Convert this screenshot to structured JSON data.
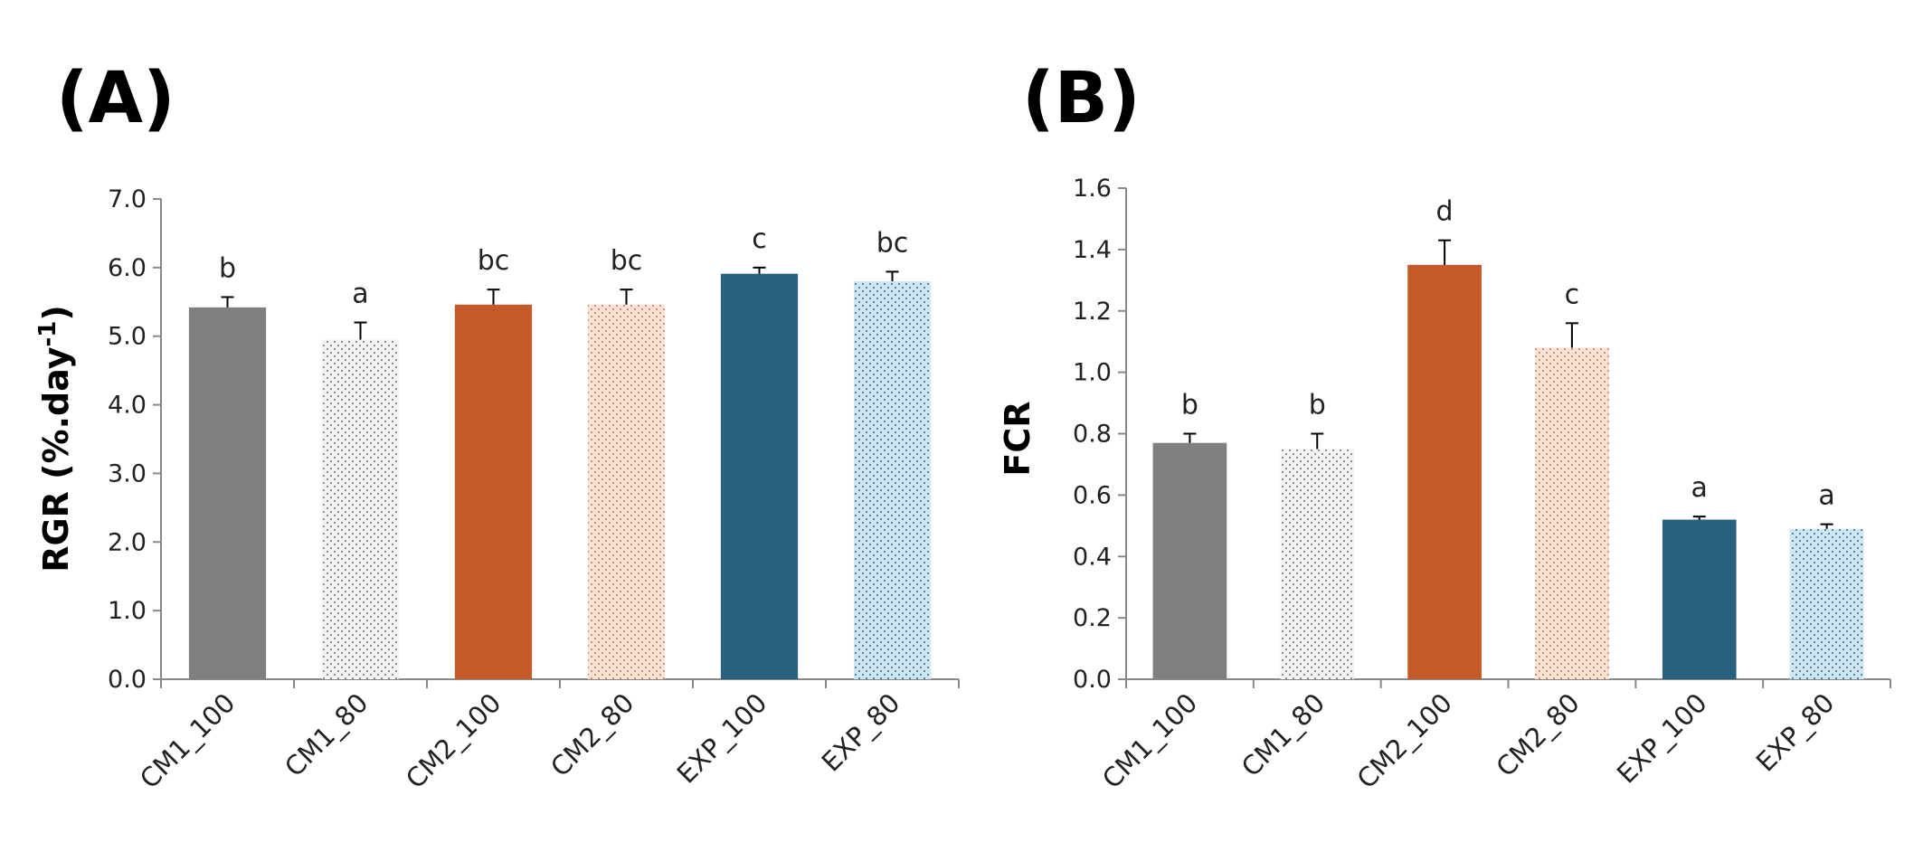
{
  "colors": {
    "CM1_100": "#7f7f7f",
    "CM1_80": "#f2f2f2",
    "CM2_100": "#c55a28",
    "CM2_80": "#fbe3d6",
    "EXP_100": "#28607e",
    "EXP_80": "#cfe6f4",
    "axis": "#888888"
  },
  "chart_data": [
    {
      "type": "bar",
      "panel_label": "(A)",
      "ylabel_main": "RGR (%.day",
      "ylabel_sup": "-1",
      "ylabel_close": ")",
      "ylim": [
        0,
        7
      ],
      "yticks": [
        "0.0",
        "1.0",
        "2.0",
        "3.0",
        "4.0",
        "5.0",
        "6.0",
        "7.0"
      ],
      "grid": false,
      "categories": [
        "CM1_100",
        "CM1_80",
        "CM2_100",
        "CM2_80",
        "EXP_100",
        "EXP_80"
      ],
      "values": [
        5.42,
        4.95,
        5.46,
        5.46,
        5.91,
        5.8
      ],
      "errors": [
        0.15,
        0.25,
        0.22,
        0.22,
        0.09,
        0.14
      ],
      "significance": [
        "b",
        "a",
        "bc",
        "bc",
        "c",
        "bc"
      ]
    },
    {
      "type": "bar",
      "panel_label": "(B)",
      "ylabel_main": "FCR",
      "ylabel_sup": "",
      "ylabel_close": "",
      "ylim": [
        0,
        1.6
      ],
      "yticks": [
        "0.0",
        "0.2",
        "0.4",
        "0.6",
        "0.8",
        "1.0",
        "1.2",
        "1.4",
        "1.6"
      ],
      "grid": false,
      "categories": [
        "CM1_100",
        "CM1_80",
        "CM2_100",
        "CM2_80",
        "EXP_100",
        "EXP_80"
      ],
      "values": [
        0.77,
        0.75,
        1.35,
        1.08,
        0.52,
        0.49
      ],
      "errors": [
        0.03,
        0.05,
        0.08,
        0.08,
        0.01,
        0.015
      ],
      "significance": [
        "b",
        "b",
        "d",
        "c",
        "a",
        "a"
      ]
    }
  ]
}
